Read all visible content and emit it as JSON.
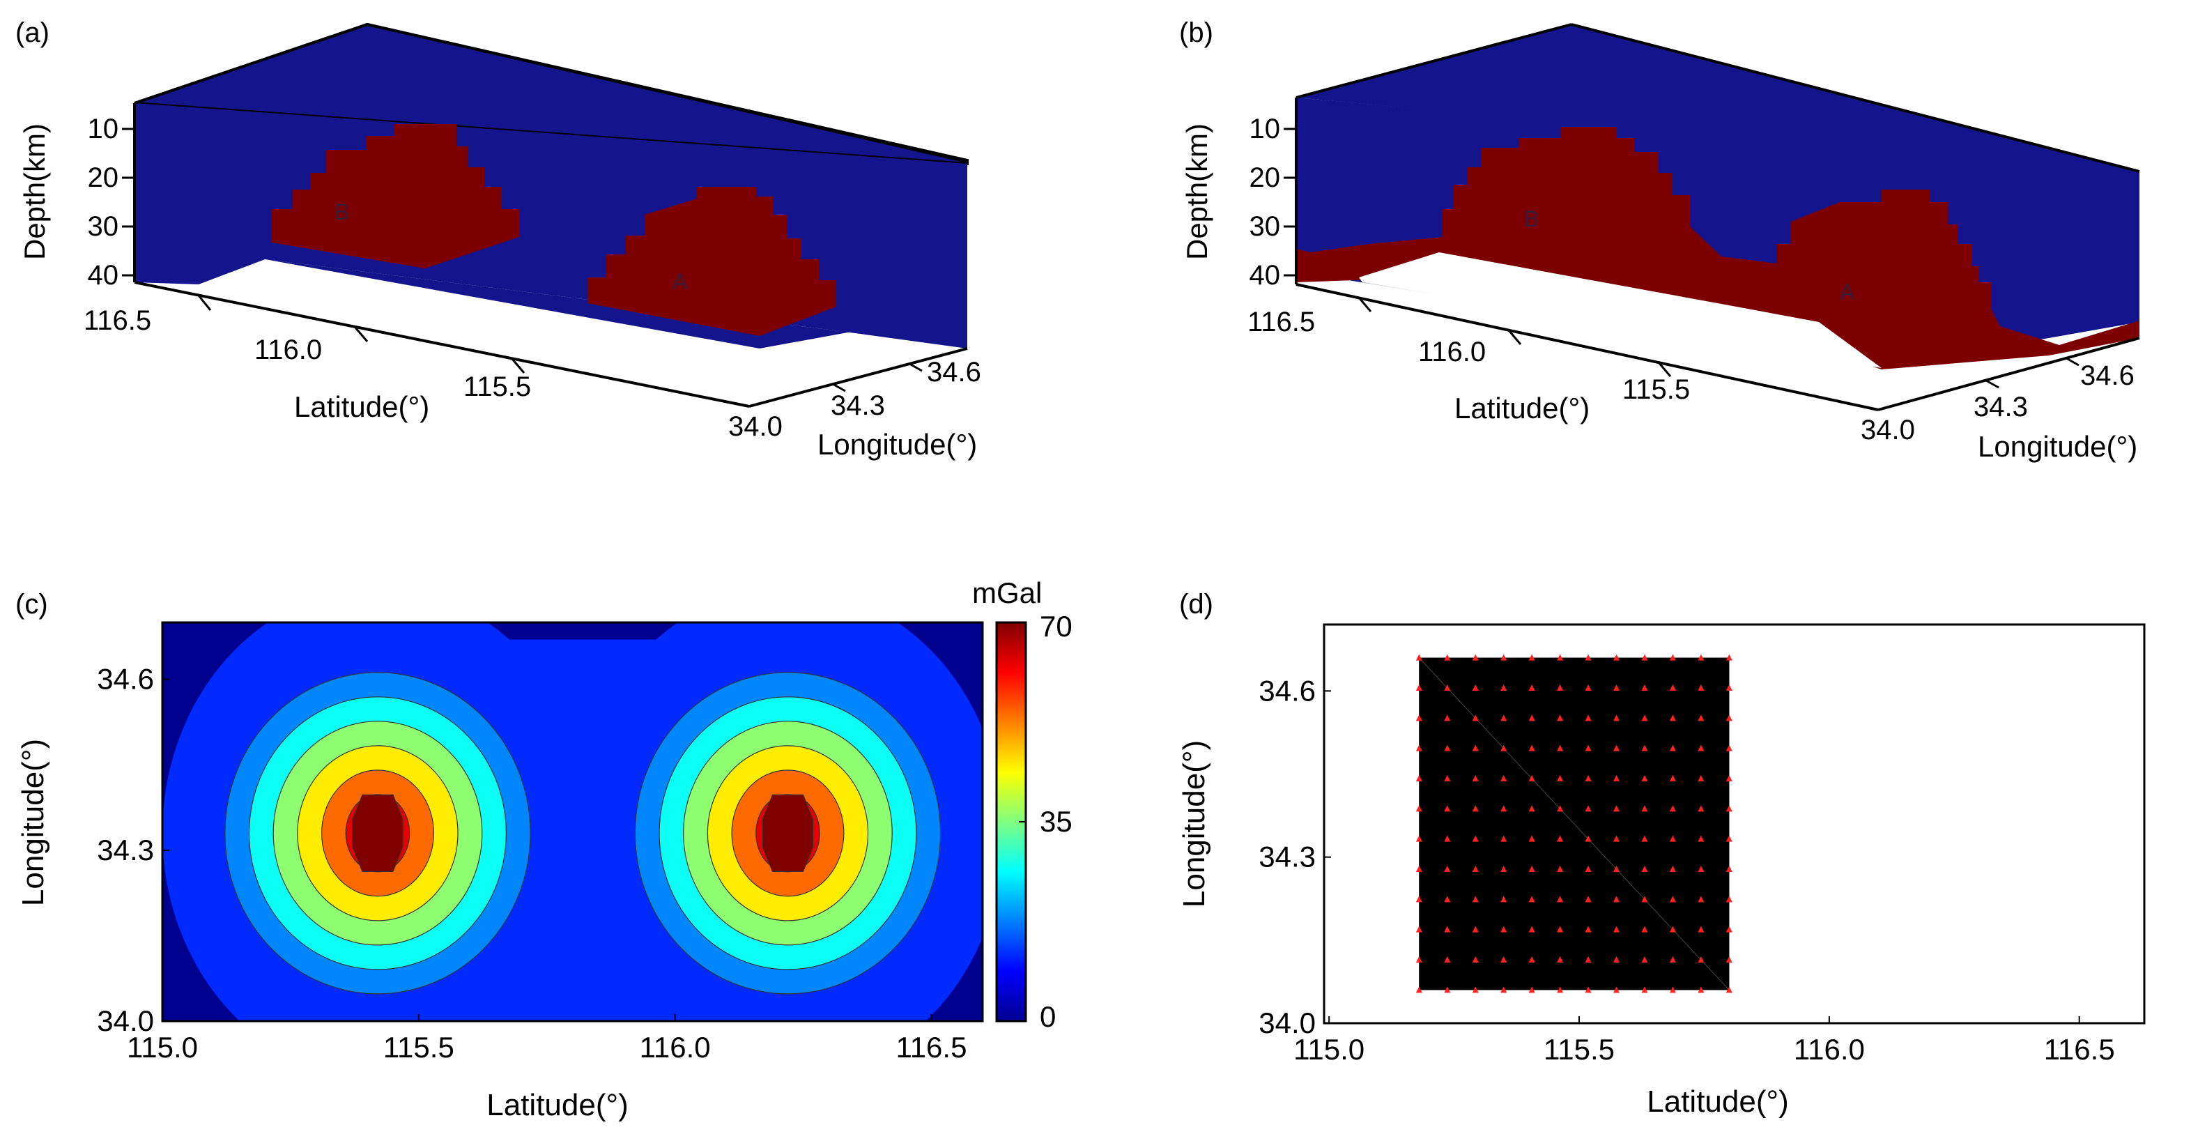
{
  "figure": {
    "panel_labels": [
      "(a)",
      "(b)",
      "(c)",
      "(d)"
    ]
  },
  "colors": {
    "background_blue": "#14148c",
    "body_red": "#7d0000",
    "station": "#ff2020",
    "mesh": "#000000"
  },
  "chart_data": [
    {
      "panel": "(a)",
      "type": "block-model-3d",
      "title": "",
      "depth_label": "Depth(km)",
      "depth_ticks": [
        "10",
        "20",
        "30",
        "40"
      ],
      "xlabel": "Latitude(°)",
      "x_ticks": [
        "116.5",
        "116.0",
        "115.5"
      ],
      "ylabel": "Longitude(°)",
      "y_ticks": [
        "34.0",
        "34.3",
        "34.6"
      ],
      "bodies": [
        {
          "label": "B",
          "latitude_center": 116.05,
          "depth_top_km": 10,
          "depth_bottom_km": 40
        },
        {
          "label": "A",
          "latitude_center": 115.35,
          "depth_top_km": 18,
          "depth_bottom_km": 44
        }
      ]
    },
    {
      "panel": "(b)",
      "type": "block-model-3d",
      "title": "",
      "depth_label": "Depth(km)",
      "depth_ticks": [
        "10",
        "20",
        "30",
        "40"
      ],
      "xlabel": "Latitude(°)",
      "x_ticks": [
        "116.5",
        "116.0",
        "115.5"
      ],
      "ylabel": "Longitude(°)",
      "y_ticks": [
        "34.0",
        "34.3",
        "34.6"
      ],
      "bodies": [
        {
          "label": "B",
          "latitude_center": 116.05,
          "depth_top_km": 10,
          "depth_bottom_km": 40
        },
        {
          "label": "A",
          "latitude_center": 115.35,
          "depth_top_km": 18,
          "depth_bottom_km": 44
        }
      ]
    },
    {
      "panel": "(c)",
      "type": "heatmap",
      "title": "",
      "xlabel": "Latitude(°)",
      "ylabel": "Longitude(°)",
      "xlim": [
        115.0,
        116.6
      ],
      "ylim": [
        34.0,
        34.7
      ],
      "x_ticks": [
        "115.0",
        "115.5",
        "116.0",
        "116.5"
      ],
      "y_ticks": [
        "34.0",
        "34.3",
        "34.6"
      ],
      "colorbar": {
        "label": "mGal",
        "ticks": [
          "0",
          "35",
          "70"
        ],
        "range": [
          0,
          70
        ]
      },
      "anomalies": [
        {
          "center_latitude": 115.42,
          "center_longitude": 34.33,
          "peak_mgal": 70
        },
        {
          "center_latitude": 116.22,
          "center_longitude": 34.33,
          "peak_mgal": 70
        }
      ],
      "contour_levels": [
        9,
        18,
        27,
        36,
        45,
        54,
        63
      ]
    },
    {
      "panel": "(d)",
      "type": "scatter",
      "title": "",
      "xlabel": "Latitude(°)",
      "ylabel": "Longitude(°)",
      "xlim": [
        114.99,
        116.63
      ],
      "ylim": [
        34.0,
        34.72
      ],
      "x_ticks": [
        "115.0",
        "115.5",
        "116.0",
        "116.5"
      ],
      "y_ticks": [
        "34.0",
        "34.3",
        "34.6"
      ],
      "stations": {
        "x_min": 115.18,
        "x_max": 115.8,
        "y_min": 34.06,
        "y_max": 34.66,
        "count_x": 12,
        "count_y": 12
      }
    }
  ]
}
